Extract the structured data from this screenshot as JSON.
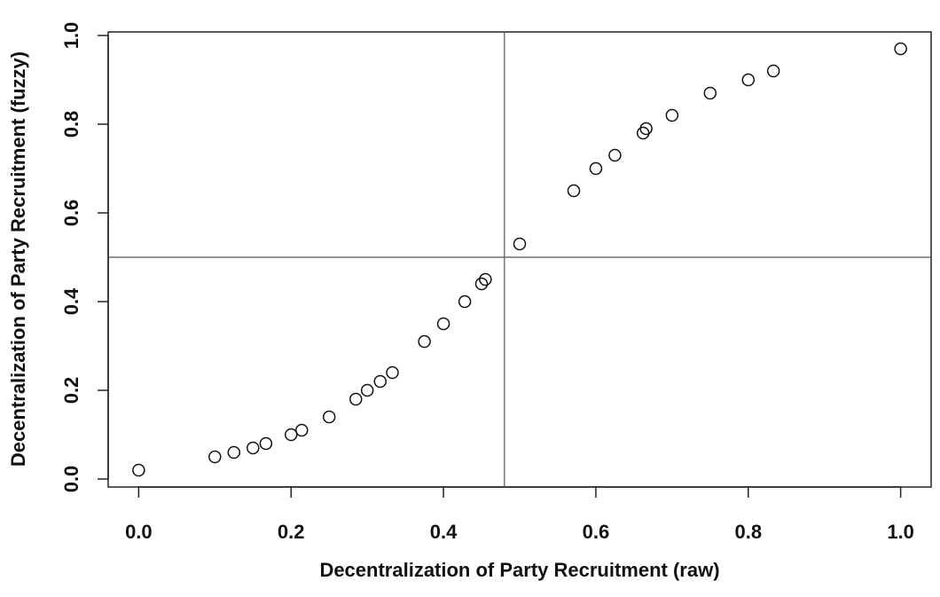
{
  "chart_data": {
    "type": "scatter",
    "x_label": "Decentralization of Party Recruitment (raw)",
    "y_label": "Decentralization of Party Recruitment (fuzzy)",
    "x": [
      0,
      0.1,
      0.125,
      0.15,
      0.167,
      0.2,
      0.214,
      0.25,
      0.285,
      0.3,
      0.317,
      0.333,
      0.375,
      0.4,
      0.428,
      0.45,
      0.455,
      0.5,
      0.571,
      0.6,
      0.625,
      0.662,
      0.666,
      0.7,
      0.75,
      0.8,
      0.833,
      1.0
    ],
    "y": [
      0.02,
      0.05,
      0.06,
      0.07,
      0.08,
      0.1,
      0.11,
      0.14,
      0.18,
      0.2,
      0.22,
      0.24,
      0.31,
      0.35,
      0.4,
      0.44,
      0.45,
      0.53,
      0.65,
      0.7,
      0.73,
      0.78,
      0.79,
      0.82,
      0.87,
      0.9,
      0.92,
      0.97
    ],
    "color": "#111111",
    "xlim": [
      -0.04,
      1.04
    ],
    "ylim": [
      -0.018,
      1.008
    ],
    "xticks": [
      {
        "value": 0,
        "label": "0.0"
      },
      0.2,
      0.4,
      0.6,
      0.8,
      {
        "value": 1,
        "label": "1.0"
      }
    ],
    "yticks": [
      {
        "value": 0,
        "label": "0.0"
      },
      0.2,
      0.4,
      0.6,
      0.8,
      {
        "value": 1,
        "label": "1.0"
      }
    ],
    "reference_lines": {
      "x": 0.48,
      "y": 0.5
    }
  }
}
